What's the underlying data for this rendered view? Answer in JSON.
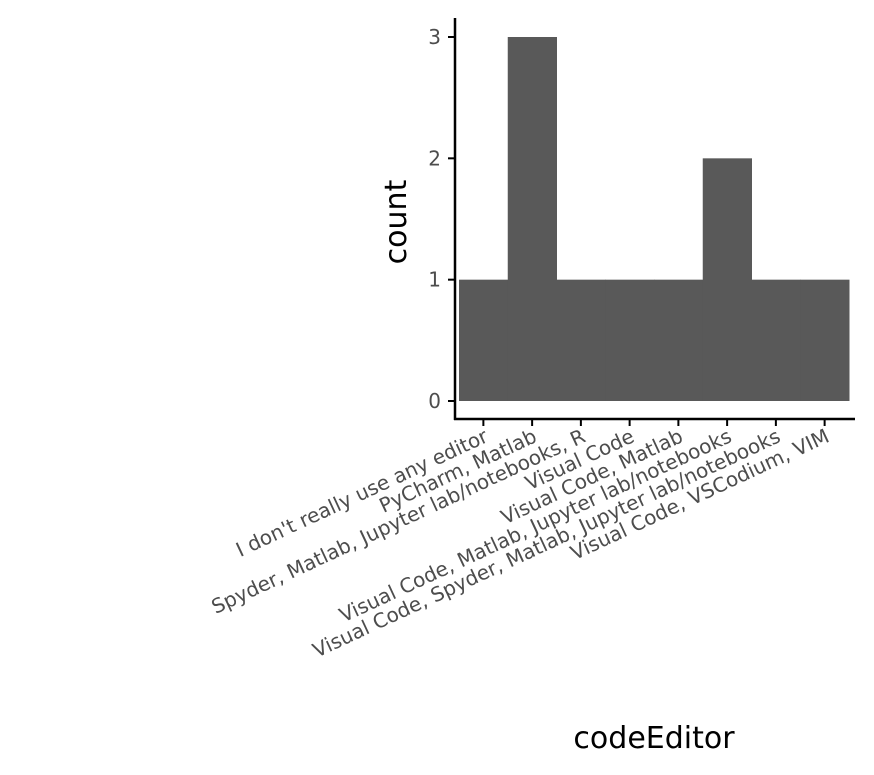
{
  "chart_data": {
    "type": "bar",
    "xlabel": "codeEditor",
    "ylabel": "count",
    "categories": [
      "I don't really use any editor",
      "PyCharm, Matlab",
      "Spyder, Matlab, Jupyter lab/notebooks, R",
      "Visual Code",
      "Visual Code, Matlab",
      "Visual Code, Matlab, Jupyter lab/notebooks",
      "Visual Code, Spyder, Matlab, Jupyter lab/notebooks",
      "Visual Code, VSCodium, VIM"
    ],
    "values": [
      1,
      3,
      1,
      1,
      1,
      2,
      1,
      1
    ],
    "yticks": [
      "0",
      "1",
      "2",
      "3"
    ],
    "ylim": [
      0,
      3
    ],
    "bar_color": "#595959",
    "axis_color": "#000000",
    "grid": false
  }
}
